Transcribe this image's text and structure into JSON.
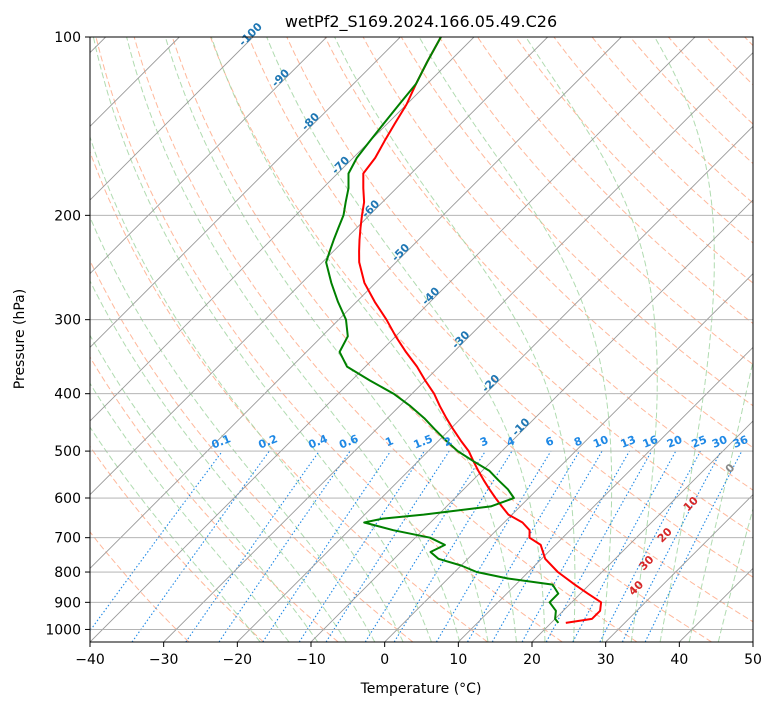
{
  "chart_data": {
    "type": "line",
    "subtype": "skew-T log-P diagram",
    "title": "wetPf2_S169.2024.166.05.49.C26",
    "xlabel": "Temperature (°C)",
    "ylabel": "Pressure (hPa)",
    "xlim": [
      -40,
      50
    ],
    "ylim": [
      1050,
      100
    ],
    "y_scale": "log",
    "grid": true,
    "x_ticks": [
      -40,
      -30,
      -20,
      -10,
      0,
      10,
      20,
      30,
      40,
      50
    ],
    "x_tick_labels": [
      "−40",
      "−30",
      "−20",
      "−10",
      "0",
      "10",
      "20",
      "30",
      "40",
      "50"
    ],
    "y_ticks": [
      100,
      200,
      300,
      400,
      500,
      600,
      700,
      800,
      900,
      1000
    ],
    "y_tick_labels": [
      "100",
      "200",
      "300",
      "400",
      "500",
      "600",
      "700",
      "800",
      "900",
      "1000"
    ],
    "colors": {
      "temperature": "#ff0000",
      "dewpoint": "#008000",
      "dry_adiabat": "#ffa07a",
      "moist_adiabat": "#a2d5a2",
      "mixing_ratio": "#1e88e5",
      "isotherm": "#999999",
      "skewed_isotherm_label": "#1f77b4",
      "moist_adiabat_label": "#d62728"
    },
    "isotherm_labels": [
      "-100",
      "-90",
      "-80",
      "-70",
      "-60",
      "-50",
      "-40",
      "-30",
      "-20",
      "-10"
    ],
    "isotherm_label_values": [
      -100,
      -90,
      -80,
      -70,
      -60,
      -50,
      -40,
      -30,
      -20,
      -10
    ],
    "mixing_ratio_labels": [
      "0.1",
      "0.2",
      "0.4",
      "0.6",
      "1",
      "1.5",
      "2",
      "3",
      "4",
      "6",
      "8",
      "10",
      "13",
      "16",
      "20",
      "25",
      "30",
      "36"
    ],
    "mixing_ratio_values": [
      0.1,
      0.2,
      0.4,
      0.6,
      1,
      1.5,
      2,
      3,
      4,
      6,
      8,
      10,
      13,
      16,
      20,
      25,
      30,
      36
    ],
    "moist_adiabat_labels": [
      "0",
      "10",
      "20",
      "30",
      "40"
    ],
    "moist_adiabat_values": [
      0,
      10,
      20,
      30,
      40
    ],
    "series": [
      {
        "name": "Temperature",
        "pressure": [
          975,
          960,
          930,
          900,
          870,
          840,
          800,
          760,
          720,
          700,
          680,
          660,
          640,
          620,
          600,
          580,
          560,
          540,
          520,
          500,
          480,
          460,
          440,
          420,
          400,
          380,
          360,
          340,
          320,
          300,
          280,
          260,
          240,
          230,
          220,
          210,
          200,
          190,
          180,
          170,
          160,
          150,
          140,
          130,
          120,
          110,
          100
        ],
        "values": [
          22,
          25,
          25,
          24,
          21,
          18,
          14,
          10.5,
          8,
          5.5,
          4.5,
          2.5,
          -0.5,
          -2.5,
          -4.5,
          -6.5,
          -8.5,
          -10.5,
          -12.5,
          -14.5,
          -17,
          -19.5,
          -22,
          -24.5,
          -27,
          -30,
          -33,
          -36.5,
          -40,
          -43.5,
          -47.5,
          -51.5,
          -55,
          -56.5,
          -58,
          -59.5,
          -61,
          -62.5,
          -64.5,
          -66.5,
          -67,
          -68,
          -69,
          -70,
          -71.5,
          -73,
          -74.5
        ]
      },
      {
        "name": "Dewpoint",
        "pressure": [
          975,
          960,
          930,
          900,
          870,
          840,
          820,
          800,
          780,
          760,
          740,
          720,
          700,
          680,
          660,
          650,
          640,
          620,
          600,
          580,
          560,
          540,
          520,
          500,
          480,
          460,
          440,
          420,
          400,
          380,
          360,
          340,
          320,
          300,
          280,
          260,
          240,
          230,
          220,
          210,
          200,
          190,
          180,
          170,
          160,
          150,
          140,
          130,
          120,
          110,
          100
        ],
        "values": [
          21,
          20,
          19,
          17,
          17,
          15,
          8,
          3,
          0,
          -4,
          -6,
          -5,
          -8,
          -14,
          -19,
          -17,
          -12,
          -4,
          -2,
          -4,
          -6.5,
          -9,
          -12.5,
          -16,
          -19,
          -22,
          -25,
          -28.5,
          -32.5,
          -37.5,
          -42.5,
          -45.5,
          -46.5,
          -49,
          -52.5,
          -56,
          -59.5,
          -60.5,
          -61.5,
          -62.5,
          -63.5,
          -65,
          -66.5,
          -68.5,
          -69.5,
          -70,
          -70.5,
          -71,
          -71.5,
          -73,
          -74.5
        ]
      }
    ]
  }
}
